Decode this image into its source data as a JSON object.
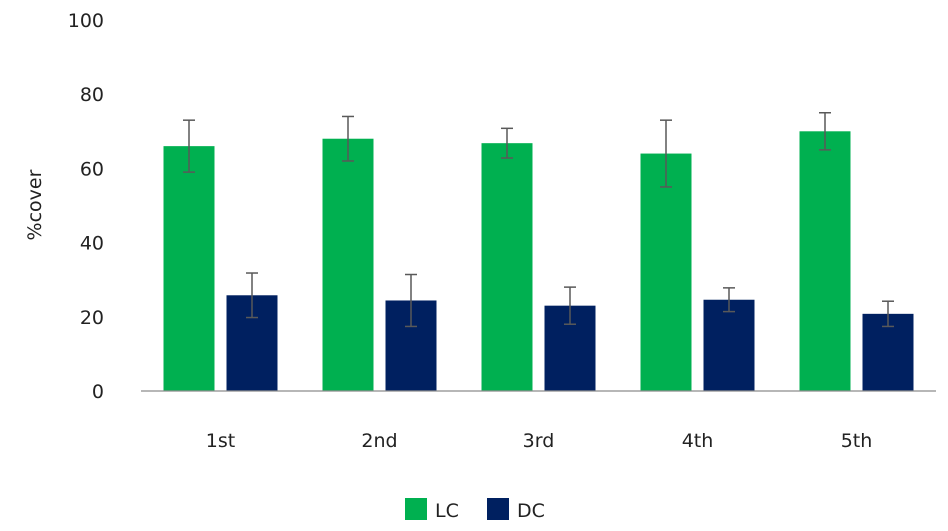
{
  "chart_data": {
    "type": "bar",
    "title": "",
    "xlabel": "",
    "ylabel": "%cover",
    "ylim": [
      0,
      100
    ],
    "yticks": [
      0,
      20,
      40,
      60,
      80,
      100
    ],
    "grid": false,
    "legend_position": "bottom",
    "categories": [
      "1st",
      "2nd",
      "3rd",
      "4th",
      "5th"
    ],
    "series": [
      {
        "name": "LC",
        "color": "#00b050",
        "values": [
          66,
          68,
          66.8,
          64,
          70
        ],
        "error": [
          7,
          6,
          4,
          9,
          5
        ]
      },
      {
        "name": "DC",
        "color": "#002060",
        "values": [
          25.8,
          24.4,
          23,
          24.6,
          20.8
        ],
        "error": [
          6,
          7,
          5,
          3.2,
          3.4
        ]
      }
    ]
  }
}
